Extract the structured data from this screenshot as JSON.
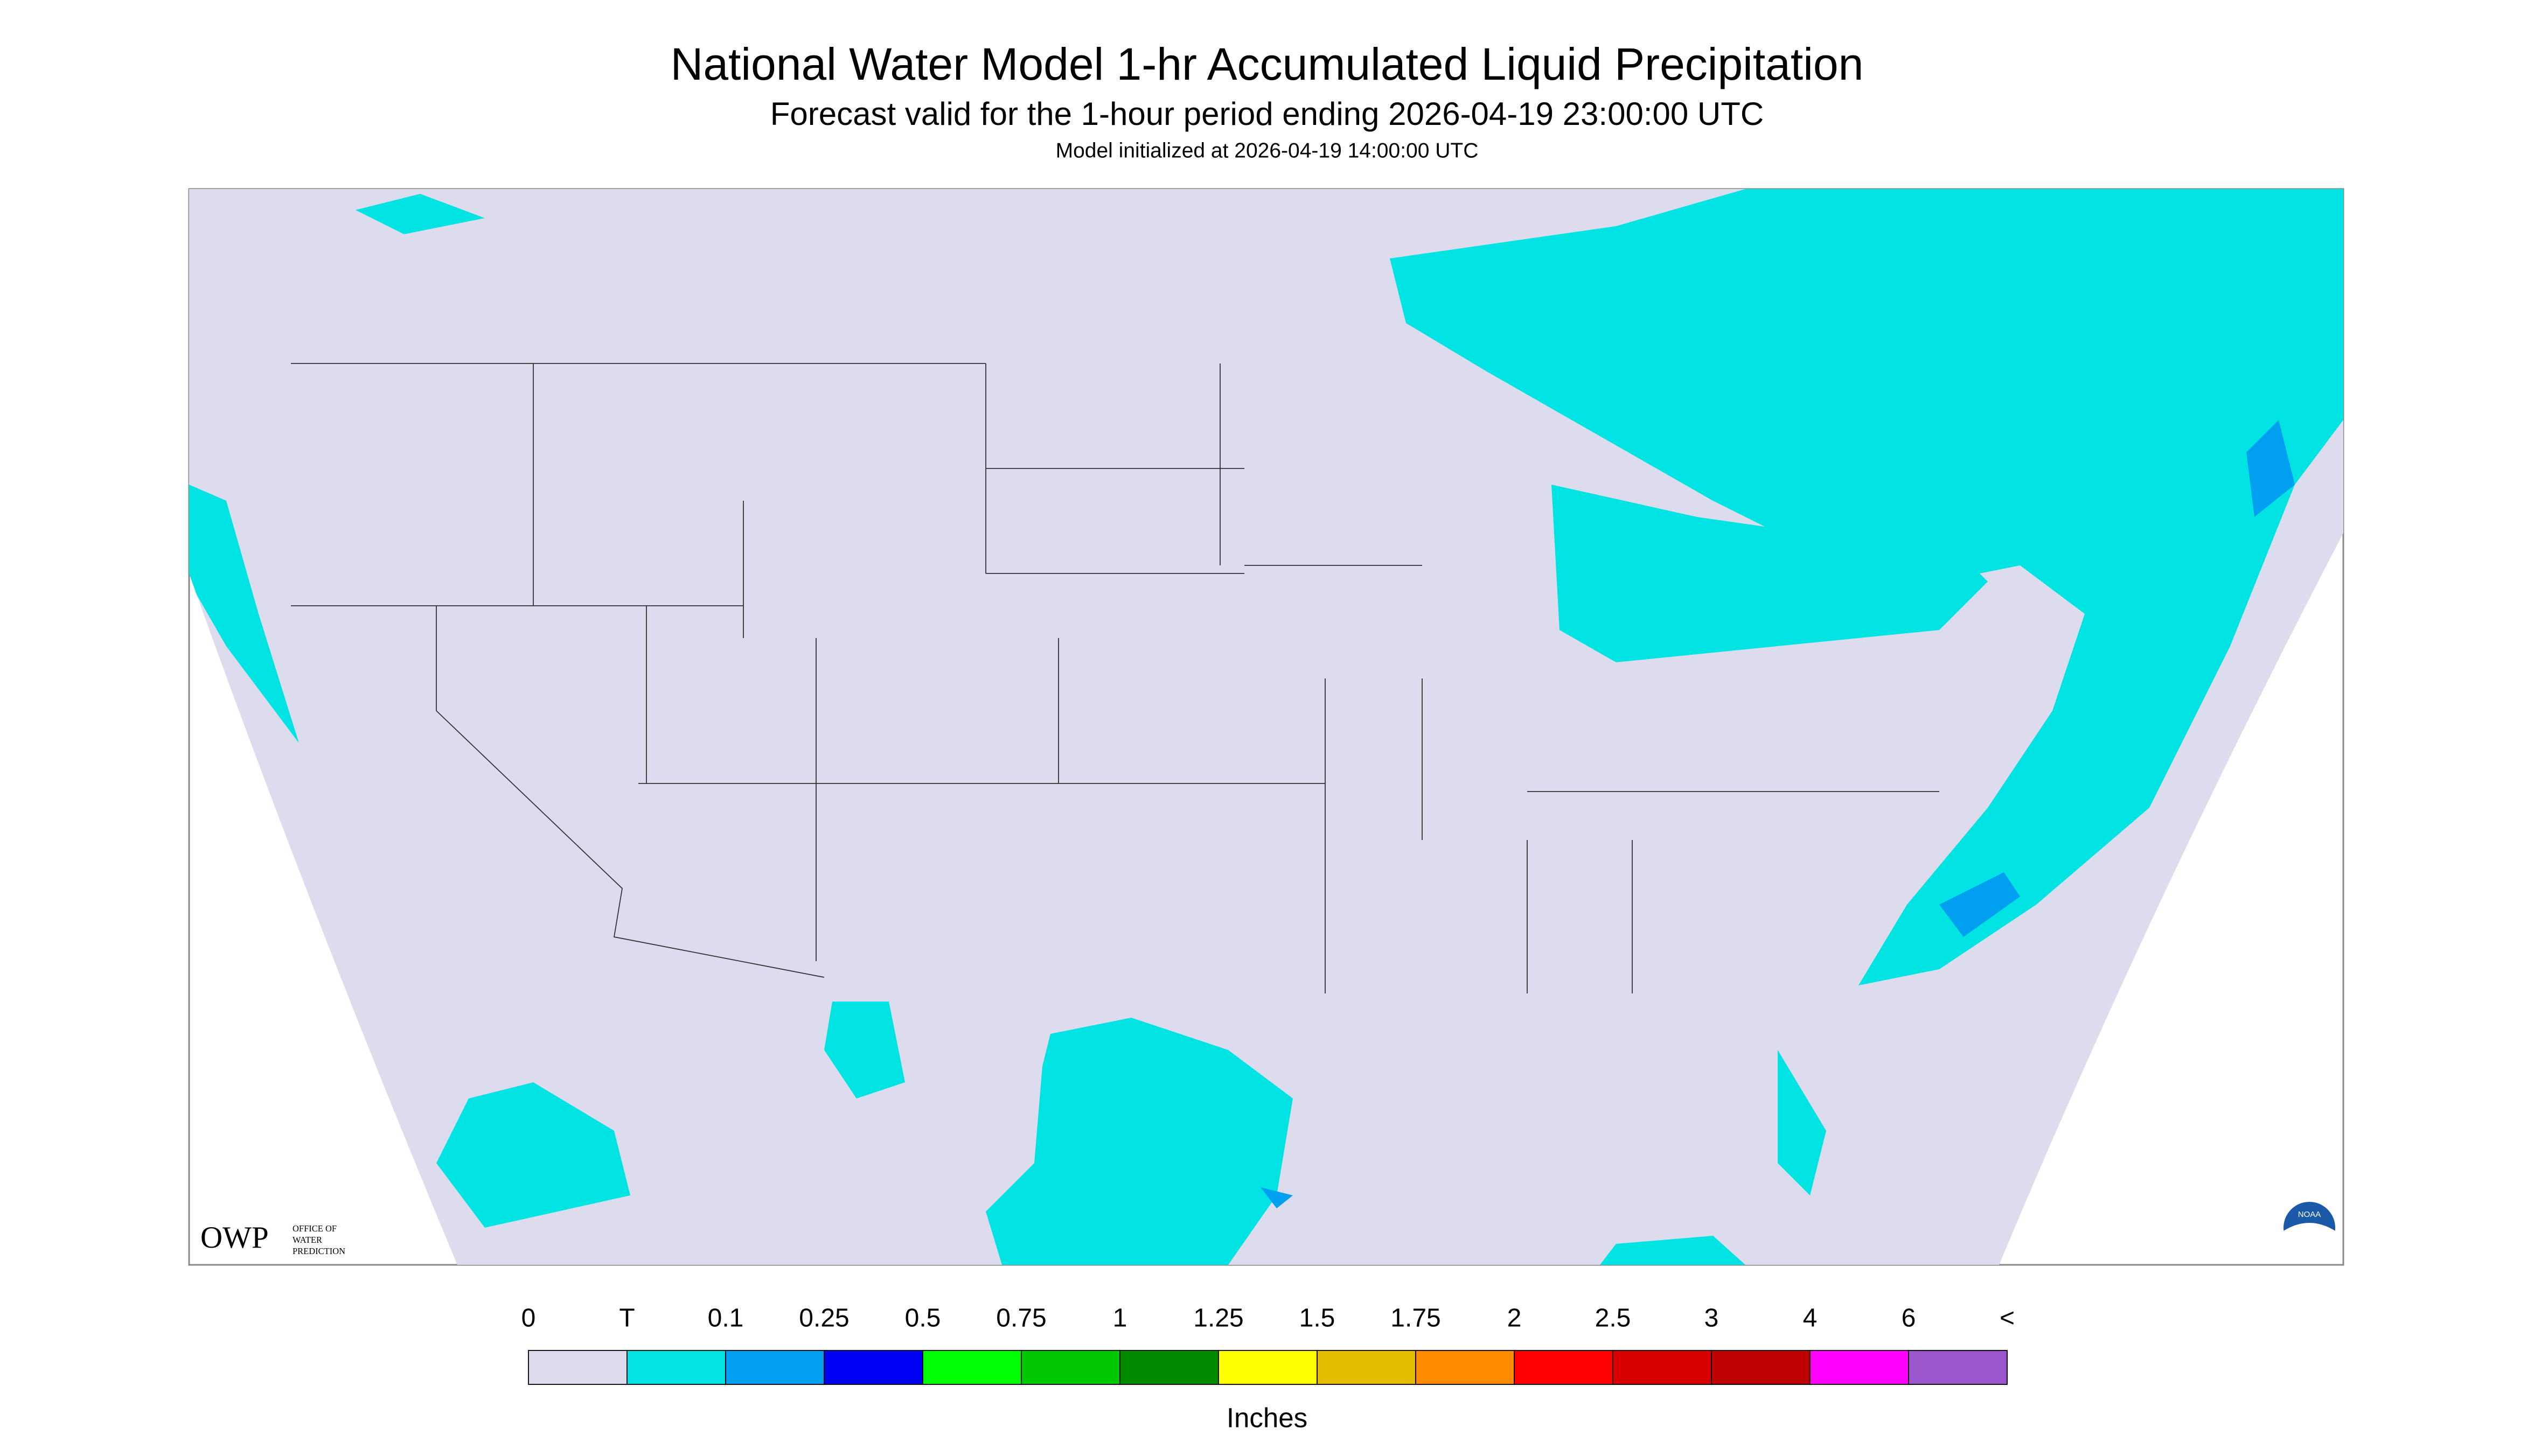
{
  "header": {
    "title": "National Water Model 1-hr Accumulated Liquid Precipitation",
    "subtitle": "Forecast valid for the 1-hour period ending 2026-04-19 23:00:00 UTC",
    "initialized": "Model initialized at 2026-04-19 14:00:00 UTC"
  },
  "legend": {
    "labels": [
      "0",
      "T",
      "0.1",
      "0.25",
      "0.5",
      "0.75",
      "1",
      "1.25",
      "1.5",
      "1.75",
      "2",
      "2.5",
      "3",
      "4",
      "6",
      "<"
    ],
    "colors": [
      "#dcdcee",
      "#00e3e3",
      "#009ff0",
      "#0000f2",
      "#00ff00",
      "#00c800",
      "#008a00",
      "#ffff00",
      "#e3bd00",
      "#ff8c00",
      "#ff0000",
      "#d80000",
      "#bd0000",
      "#ff00ff",
      "#9955cc"
    ],
    "unit": "Inches"
  },
  "logos": {
    "owp": "OWP",
    "owp_name": [
      "OFFICE OF",
      "WATER",
      "PREDICTION"
    ],
    "noaa": "NOAA"
  }
}
